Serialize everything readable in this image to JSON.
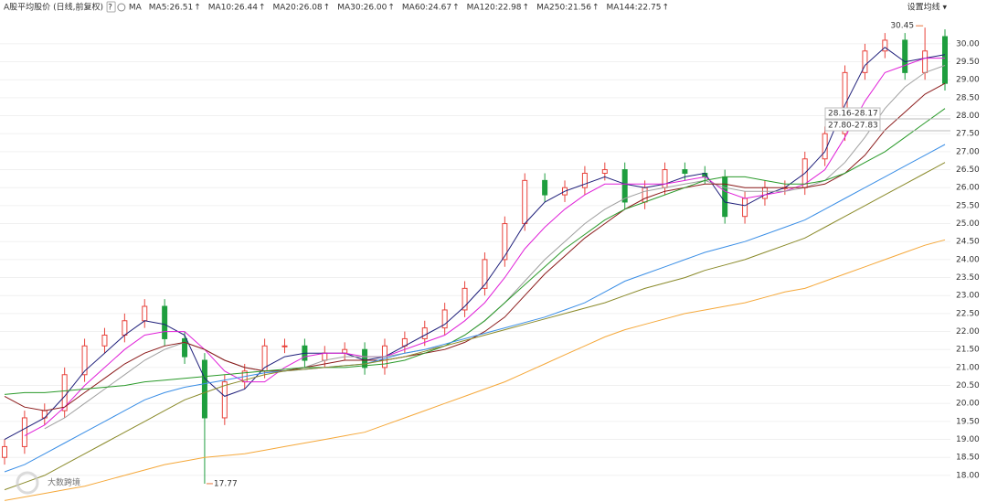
{
  "chart_data": {
    "type": "candlestick",
    "title": "A股平均股价",
    "subtitle": "(日线,前复权)",
    "help": "?",
    "ma_label": "MA",
    "settings": "设置均线 ▾",
    "watermark": "大数跨境",
    "annotations": [
      "30.45",
      "17.77",
      "28.16-28.17",
      "27.80-27.83"
    ],
    "ylim": [
      17.26,
      30.76
    ],
    "yticks": [
      {
        "value": 18,
        "label": "18.00"
      },
      {
        "value": 18.5,
        "label": "18.50"
      },
      {
        "value": 19,
        "label": "19.00"
      },
      {
        "value": 19.5,
        "label": "19.50"
      },
      {
        "value": 20,
        "label": "20.00"
      },
      {
        "value": 20.5,
        "label": "20.50"
      },
      {
        "value": 21,
        "label": "21.00"
      },
      {
        "value": 21.5,
        "label": "21.50"
      },
      {
        "value": 22,
        "label": "22.00"
      },
      {
        "value": 22.5,
        "label": "22.50"
      },
      {
        "value": 23,
        "label": "23.00"
      },
      {
        "value": 23.5,
        "label": "23.50"
      },
      {
        "value": 24,
        "label": "24.00"
      },
      {
        "value": 24.5,
        "label": "24.50"
      },
      {
        "value": 25,
        "label": "25.00"
      },
      {
        "value": 25.5,
        "label": "25.50"
      },
      {
        "value": 26,
        "label": "26.00"
      },
      {
        "value": 26.5,
        "label": "26.50"
      },
      {
        "value": 27,
        "label": "27.00"
      },
      {
        "value": 27.5,
        "label": "27.50"
      },
      {
        "value": 28,
        "label": "28.00"
      },
      {
        "value": 28.5,
        "label": "28.50"
      },
      {
        "value": 29,
        "label": "29.00"
      },
      {
        "value": 29.5,
        "label": "29.50"
      },
      {
        "value": 30,
        "label": "30.00"
      }
    ],
    "grid": true,
    "up_color": "#e8433c",
    "down_color": "#1e9e3e",
    "candles": {
      "open": [
        18.5,
        18.8,
        19.6,
        19.8,
        20.8,
        21.6,
        21.9,
        22.3,
        22.7,
        21.8,
        21.2,
        19.6,
        20.6,
        20.9,
        21.6,
        21.6,
        21.2,
        21.4,
        21.5,
        21.0,
        21.6,
        21.8,
        22.1,
        22.6,
        23.2,
        24.0,
        25.0,
        26.2,
        25.8,
        26.0,
        26.4,
        26.5,
        25.6,
        26.0,
        26.5,
        26.4,
        26.3,
        25.2,
        25.7,
        26.0,
        26.0,
        26.8,
        27.5,
        29.2,
        29.8,
        30.1,
        29.2,
        30.2
      ],
      "high": [
        19.0,
        19.8,
        20.0,
        21.0,
        21.8,
        22.1,
        22.5,
        22.9,
        22.9,
        22.0,
        21.4,
        20.8,
        21.1,
        21.8,
        21.8,
        21.8,
        21.6,
        21.7,
        21.7,
        21.8,
        22.0,
        22.3,
        22.8,
        23.4,
        24.2,
        25.2,
        26.4,
        26.4,
        26.2,
        26.6,
        26.7,
        26.7,
        26.2,
        26.7,
        26.7,
        26.6,
        26.5,
        25.9,
        26.2,
        26.2,
        27.0,
        27.7,
        29.4,
        30.0,
        30.3,
        30.3,
        30.45,
        30.4
      ],
      "low": [
        18.3,
        18.6,
        19.4,
        19.6,
        20.6,
        21.4,
        21.7,
        22.1,
        21.6,
        21.1,
        17.77,
        19.4,
        20.4,
        20.7,
        21.4,
        21.0,
        21.0,
        21.2,
        20.8,
        20.8,
        21.4,
        21.6,
        21.9,
        22.4,
        23.0,
        23.8,
        24.8,
        25.6,
        25.6,
        25.8,
        26.2,
        25.4,
        25.4,
        25.8,
        26.2,
        26.1,
        25.0,
        25.0,
        25.5,
        25.8,
        25.8,
        26.6,
        27.3,
        29.0,
        29.6,
        29.0,
        29.0,
        28.7
      ],
      "close": [
        18.8,
        19.6,
        19.8,
        20.8,
        21.6,
        21.9,
        22.3,
        22.7,
        21.8,
        21.3,
        19.6,
        20.6,
        20.9,
        21.6,
        21.6,
        21.2,
        21.4,
        21.5,
        21.0,
        21.6,
        21.8,
        22.1,
        22.6,
        23.2,
        24.0,
        25.0,
        26.2,
        25.8,
        26.0,
        26.4,
        26.5,
        25.6,
        26.0,
        26.5,
        26.4,
        26.3,
        25.2,
        25.7,
        26.0,
        26.0,
        26.8,
        27.5,
        29.2,
        29.8,
        30.1,
        29.2,
        29.8,
        28.9
      ]
    },
    "series": [
      {
        "name": "MA5:26.51",
        "trend": "↑",
        "color": "#1f1f7a",
        "values": [
          19.0,
          19.3,
          19.6,
          20.2,
          20.9,
          21.4,
          21.9,
          22.3,
          22.2,
          21.9,
          20.7,
          20.2,
          20.4,
          21.0,
          21.3,
          21.4,
          21.4,
          21.4,
          21.2,
          21.3,
          21.6,
          21.9,
          22.2,
          22.7,
          23.3,
          24.1,
          25.0,
          25.6,
          25.9,
          26.1,
          26.3,
          26.1,
          26.0,
          26.1,
          26.3,
          26.4,
          25.6,
          25.5,
          25.8,
          26.0,
          26.4,
          27.0,
          28.3,
          29.4,
          29.9,
          29.5,
          29.6,
          29.7
        ]
      },
      {
        "name": "MA10:26.44",
        "trend": "↑",
        "color": "#e020d8",
        "values": [
          null,
          19.1,
          19.4,
          19.9,
          20.5,
          21.0,
          21.5,
          21.9,
          22.0,
          22.0,
          21.5,
          20.9,
          20.6,
          20.6,
          21.0,
          21.3,
          21.4,
          21.4,
          21.3,
          21.3,
          21.5,
          21.7,
          21.9,
          22.3,
          22.8,
          23.5,
          24.3,
          24.9,
          25.4,
          25.8,
          26.1,
          26.1,
          26.1,
          26.1,
          26.2,
          26.3,
          25.9,
          25.7,
          25.8,
          25.9,
          26.1,
          26.5,
          27.4,
          28.4,
          29.2,
          29.4,
          29.6,
          29.6
        ]
      },
      {
        "name": "MA20:26.08",
        "trend": "↑",
        "color": "#a0a0a0",
        "values": [
          null,
          null,
          19.3,
          19.6,
          20.0,
          20.4,
          20.8,
          21.2,
          21.5,
          21.7,
          21.5,
          21.2,
          21.0,
          20.9,
          20.9,
          21.0,
          21.2,
          21.3,
          21.3,
          21.3,
          21.4,
          21.5,
          21.6,
          21.9,
          22.3,
          22.8,
          23.4,
          24.0,
          24.5,
          25.0,
          25.4,
          25.7,
          25.9,
          26.0,
          26.1,
          26.2,
          26.0,
          25.9,
          25.9,
          25.9,
          26.0,
          26.2,
          26.7,
          27.4,
          28.2,
          28.8,
          29.2,
          29.4
        ]
      },
      {
        "name": "MA30:26.00",
        "trend": "↑",
        "color": "#8b1a1a",
        "values": [
          20.2,
          19.9,
          19.8,
          19.9,
          20.3,
          20.7,
          21.1,
          21.4,
          21.6,
          21.7,
          21.5,
          21.2,
          21.0,
          20.9,
          20.9,
          21.0,
          21.1,
          21.2,
          21.2,
          21.2,
          21.3,
          21.4,
          21.5,
          21.7,
          22.0,
          22.4,
          23.0,
          23.6,
          24.1,
          24.6,
          25.0,
          25.4,
          25.7,
          25.9,
          26.0,
          26.1,
          26.1,
          26.0,
          26.0,
          26.0,
          26.0,
          26.1,
          26.4,
          26.9,
          27.6,
          28.1,
          28.6,
          28.9
        ]
      },
      {
        "name": "MA60:24.67",
        "trend": "↑",
        "color": "#2a9a2a",
        "values": [
          20.25,
          20.3,
          20.3,
          20.35,
          20.4,
          20.45,
          20.5,
          20.6,
          20.65,
          20.7,
          20.75,
          20.8,
          20.85,
          20.9,
          20.95,
          21.0,
          21.0,
          21.0,
          21.05,
          21.1,
          21.2,
          21.4,
          21.6,
          21.9,
          22.3,
          22.8,
          23.3,
          23.8,
          24.3,
          24.7,
          25.1,
          25.4,
          25.6,
          25.8,
          26.0,
          26.2,
          26.3,
          26.3,
          26.2,
          26.1,
          26.1,
          26.2,
          26.4,
          26.7,
          27.0,
          27.4,
          27.8,
          28.2
        ]
      },
      {
        "name": "MA120:22.98",
        "trend": "↑",
        "color": "#3a8ee6",
        "values": [
          18.1,
          18.3,
          18.6,
          18.9,
          19.2,
          19.5,
          19.8,
          20.1,
          20.3,
          20.45,
          20.55,
          20.65,
          20.75,
          20.85,
          20.9,
          20.95,
          21.0,
          21.05,
          21.1,
          21.25,
          21.4,
          21.5,
          21.65,
          21.8,
          21.95,
          22.1,
          22.25,
          22.4,
          22.6,
          22.8,
          23.1,
          23.4,
          23.6,
          23.8,
          24.0,
          24.2,
          24.35,
          24.5,
          24.7,
          24.9,
          25.1,
          25.4,
          25.7,
          26.0,
          26.3,
          26.6,
          26.9,
          27.2
        ]
      },
      {
        "name": "MA250:21.56",
        "trend": "↑",
        "color": "#f5a83a",
        "values": [
          17.3,
          17.4,
          17.5,
          17.6,
          17.7,
          17.85,
          18.0,
          18.15,
          18.3,
          18.4,
          18.5,
          18.55,
          18.6,
          18.7,
          18.8,
          18.9,
          19.0,
          19.1,
          19.2,
          19.4,
          19.6,
          19.8,
          20.0,
          20.2,
          20.4,
          20.6,
          20.85,
          21.1,
          21.35,
          21.6,
          21.85,
          22.05,
          22.2,
          22.35,
          22.5,
          22.6,
          22.7,
          22.8,
          22.95,
          23.1,
          23.2,
          23.4,
          23.6,
          23.8,
          24.0,
          24.2,
          24.4,
          24.55
        ]
      },
      {
        "name": "MA144:22.75",
        "trend": "↑",
        "color": "#8a8a2a",
        "values": [
          17.6,
          17.8,
          18.0,
          18.3,
          18.6,
          18.9,
          19.2,
          19.5,
          19.8,
          20.1,
          20.3,
          20.5,
          20.65,
          20.8,
          20.9,
          20.95,
          21.0,
          21.05,
          21.1,
          21.2,
          21.3,
          21.45,
          21.6,
          21.75,
          21.9,
          22.05,
          22.2,
          22.35,
          22.5,
          22.65,
          22.8,
          23.0,
          23.2,
          23.35,
          23.5,
          23.7,
          23.85,
          24.0,
          24.2,
          24.4,
          24.6,
          24.9,
          25.2,
          25.5,
          25.8,
          26.1,
          26.4,
          26.7
        ]
      }
    ]
  }
}
